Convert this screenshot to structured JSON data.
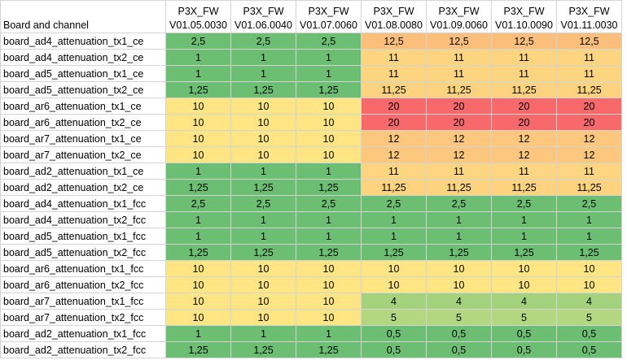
{
  "table": {
    "header": {
      "first": "Board and channel",
      "columns": [
        {
          "name": "P3X_FW",
          "version": "V01.05.0030"
        },
        {
          "name": "P3X_FW",
          "version": "V01.06.0040"
        },
        {
          "name": "P3X_FW",
          "version": "V01.07.0060"
        },
        {
          "name": "P3X_FW",
          "version": "V01.08.0080"
        },
        {
          "name": "P3X_FW",
          "version": "V01.09.0060"
        },
        {
          "name": "P3X_FW",
          "version": "V01.10.0090"
        },
        {
          "name": "P3X_FW",
          "version": "V01.11.0030"
        }
      ]
    },
    "rows": [
      {
        "label": "board_ad4_attenuation_tx1_ce",
        "cells": [
          "2,5",
          "2,5",
          "2,5",
          "12,5",
          "12,5",
          "12,5",
          "12,5"
        ],
        "fills": [
          "#6cbf72",
          "#6cbf72",
          "#6cbf72",
          "#fcbf7b",
          "#fcbf7b",
          "#fcbf7b",
          "#fcbf7b"
        ]
      },
      {
        "label": "board_ad4_attenuation_tx2_ce",
        "cells": [
          "1",
          "1",
          "1",
          "11",
          "11",
          "11",
          "11"
        ],
        "fills": [
          "#6cbf72",
          "#6cbf72",
          "#6cbf72",
          "#fdd580",
          "#fdd580",
          "#fdd580",
          "#fdd580"
        ]
      },
      {
        "label": "board_ad5_attenuation_tx1_ce",
        "cells": [
          "1",
          "1",
          "1",
          "11",
          "11",
          "11",
          "11"
        ],
        "fills": [
          "#6cbf72",
          "#6cbf72",
          "#6cbf72",
          "#fdd580",
          "#fdd580",
          "#fdd580",
          "#fdd580"
        ]
      },
      {
        "label": "board_ad5_attenuation_tx2_ce",
        "cells": [
          "1,25",
          "1,25",
          "1,25",
          "11,25",
          "11,25",
          "11,25",
          "11,25"
        ],
        "fills": [
          "#6cbf72",
          "#6cbf72",
          "#6cbf72",
          "#fdd37f",
          "#fdd37f",
          "#fdd37f",
          "#fdd37f"
        ]
      },
      {
        "label": "board_ar6_attenuation_tx1_ce",
        "cells": [
          "10",
          "10",
          "10",
          "20",
          "20",
          "20",
          "20"
        ],
        "fills": [
          "#ffe584",
          "#ffe584",
          "#ffe584",
          "#f8696b",
          "#f8696b",
          "#f8696b",
          "#f8696b"
        ]
      },
      {
        "label": "board_ar6_attenuation_tx2_ce",
        "cells": [
          "10",
          "10",
          "10",
          "20",
          "20",
          "20",
          "20"
        ],
        "fills": [
          "#ffe584",
          "#ffe584",
          "#ffe584",
          "#f8696b",
          "#f8696b",
          "#f8696b",
          "#f8696b"
        ]
      },
      {
        "label": "board_ar7_attenuation_tx1_ce",
        "cells": [
          "10",
          "10",
          "10",
          "12",
          "12",
          "12",
          "12"
        ],
        "fills": [
          "#ffe584",
          "#ffe584",
          "#ffe584",
          "#fdc77d",
          "#fdc77d",
          "#fdc77d",
          "#fdc77d"
        ]
      },
      {
        "label": "board_ar7_attenuation_tx2_ce",
        "cells": [
          "10",
          "10",
          "10",
          "12",
          "12",
          "12",
          "12"
        ],
        "fills": [
          "#ffe584",
          "#ffe584",
          "#ffe584",
          "#fdc77d",
          "#fdc77d",
          "#fdc77d",
          "#fdc77d"
        ]
      },
      {
        "label": "board_ad2_attenuation_tx1_ce",
        "cells": [
          "1",
          "1",
          "1",
          "11",
          "11",
          "11",
          "11"
        ],
        "fills": [
          "#6cbf72",
          "#6cbf72",
          "#6cbf72",
          "#fdd580",
          "#fdd580",
          "#fdd580",
          "#fdd580"
        ]
      },
      {
        "label": "board_ad2_attenuation_tx2_ce",
        "cells": [
          "1,25",
          "1,25",
          "1,25",
          "11,25",
          "11,25",
          "11,25",
          "11,25"
        ],
        "fills": [
          "#6cbf72",
          "#6cbf72",
          "#6cbf72",
          "#fdd37f",
          "#fdd37f",
          "#fdd37f",
          "#fdd37f"
        ]
      },
      {
        "label": "board_ad4_attenuation_tx1_fcc",
        "cells": [
          "2,5",
          "2,5",
          "2,5",
          "2,5",
          "2,5",
          "2,5",
          "2,5"
        ],
        "fills": [
          "#6cbf72",
          "#6cbf72",
          "#6cbf72",
          "#6cbf72",
          "#6cbf72",
          "#6cbf72",
          "#6cbf72"
        ]
      },
      {
        "label": "board_ad4_attenuation_tx2_fcc",
        "cells": [
          "1",
          "1",
          "1",
          "1",
          "1",
          "1",
          "1"
        ],
        "fills": [
          "#6cbf72",
          "#6cbf72",
          "#6cbf72",
          "#6cbf72",
          "#6cbf72",
          "#6cbf72",
          "#6cbf72"
        ]
      },
      {
        "label": "board_ad5_attenuation_tx1_fcc",
        "cells": [
          "1",
          "1",
          "1",
          "1",
          "1",
          "1",
          "1"
        ],
        "fills": [
          "#6cbf72",
          "#6cbf72",
          "#6cbf72",
          "#6cbf72",
          "#6cbf72",
          "#6cbf72",
          "#6cbf72"
        ]
      },
      {
        "label": "board_ad5_attenuation_tx2_fcc",
        "cells": [
          "1,25",
          "1,25",
          "1,25",
          "1,25",
          "1,25",
          "1,25",
          "1,25"
        ],
        "fills": [
          "#6cbf72",
          "#6cbf72",
          "#6cbf72",
          "#6cbf72",
          "#6cbf72",
          "#6cbf72",
          "#6cbf72"
        ]
      },
      {
        "label": "board_ar6_attenuation_tx1_fcc",
        "cells": [
          "10",
          "10",
          "10",
          "10",
          "10",
          "10",
          "10"
        ],
        "fills": [
          "#ffe584",
          "#ffe584",
          "#ffe584",
          "#ffe584",
          "#ffe584",
          "#ffe584",
          "#ffe584"
        ]
      },
      {
        "label": "board_ar6_attenuation_tx2_fcc",
        "cells": [
          "10",
          "10",
          "10",
          "10",
          "10",
          "10",
          "10"
        ],
        "fills": [
          "#ffe584",
          "#ffe584",
          "#ffe584",
          "#ffe584",
          "#ffe584",
          "#ffe584",
          "#ffe584"
        ]
      },
      {
        "label": "board_ar7_attenuation_tx1_fcc",
        "cells": [
          "10",
          "10",
          "10",
          "4",
          "4",
          "4",
          "4"
        ],
        "fills": [
          "#ffe584",
          "#ffe584",
          "#ffe584",
          "#a4d27c",
          "#a4d27c",
          "#a4d27c",
          "#a4d27c"
        ]
      },
      {
        "label": "board_ar7_attenuation_tx2_fcc",
        "cells": [
          "10",
          "10",
          "10",
          "5",
          "5",
          "5",
          "5"
        ],
        "fills": [
          "#ffe584",
          "#ffe584",
          "#ffe584",
          "#b3d680",
          "#b3d680",
          "#b3d680",
          "#b3d680"
        ]
      },
      {
        "label": "board_ad2_attenuation_tx1_fcc",
        "cells": [
          "1",
          "1",
          "1",
          "0,5",
          "0,5",
          "0,5",
          "0,5"
        ],
        "fills": [
          "#6cbf72",
          "#6cbf72",
          "#6cbf72",
          "#6cbf72",
          "#6cbf72",
          "#6cbf72",
          "#6cbf72"
        ]
      },
      {
        "label": "board_ad2_attenuation_tx2_fcc",
        "cells": [
          "1,25",
          "1,25",
          "1,25",
          "0,5",
          "0,5",
          "0,5",
          "0,5"
        ],
        "fills": [
          "#6cbf72",
          "#6cbf72",
          "#6cbf72",
          "#6cbf72",
          "#6cbf72",
          "#6cbf72",
          "#6cbf72"
        ]
      }
    ]
  }
}
